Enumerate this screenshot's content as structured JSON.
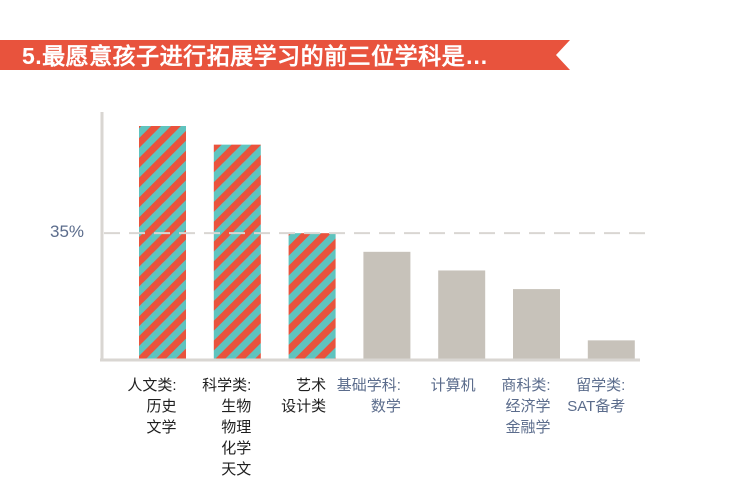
{
  "title": "5.最愿意孩子进行拓展学习的前三位学科是…",
  "colors": {
    "banner": "#E8533D",
    "highlight_stripe_a": "#E8533D",
    "highlight_stripe_b": "#5FC3BE",
    "neutral_bar": "#C7C2BA",
    "axis": "#D9D6D2",
    "ref_line": "#D9D6D2",
    "text_highlight": "#1F1F1F",
    "text_neutral": "#5B6C8C"
  },
  "chart_data": {
    "type": "bar",
    "title": "5.最愿意孩子进行拓展学习的前三位学科是…",
    "categories": [
      "人文类:\n历史\n文学",
      "科学类:\n生物\n物理\n化学\n天文",
      "艺术\n设计类",
      "基础学科:\n数学",
      "计算机",
      "商科类:\n经济学\n金融学",
      "留学类:\nSAT备考"
    ],
    "values": [
      50,
      46,
      27,
      23,
      19,
      15,
      4
    ],
    "highlighted": [
      true,
      true,
      true,
      false,
      false,
      false,
      false
    ],
    "reference_line": {
      "value": 27,
      "label": "35%"
    },
    "ylim": [
      0,
      50
    ],
    "xlabel": "",
    "ylabel": "",
    "grid": false,
    "legend": "none"
  }
}
